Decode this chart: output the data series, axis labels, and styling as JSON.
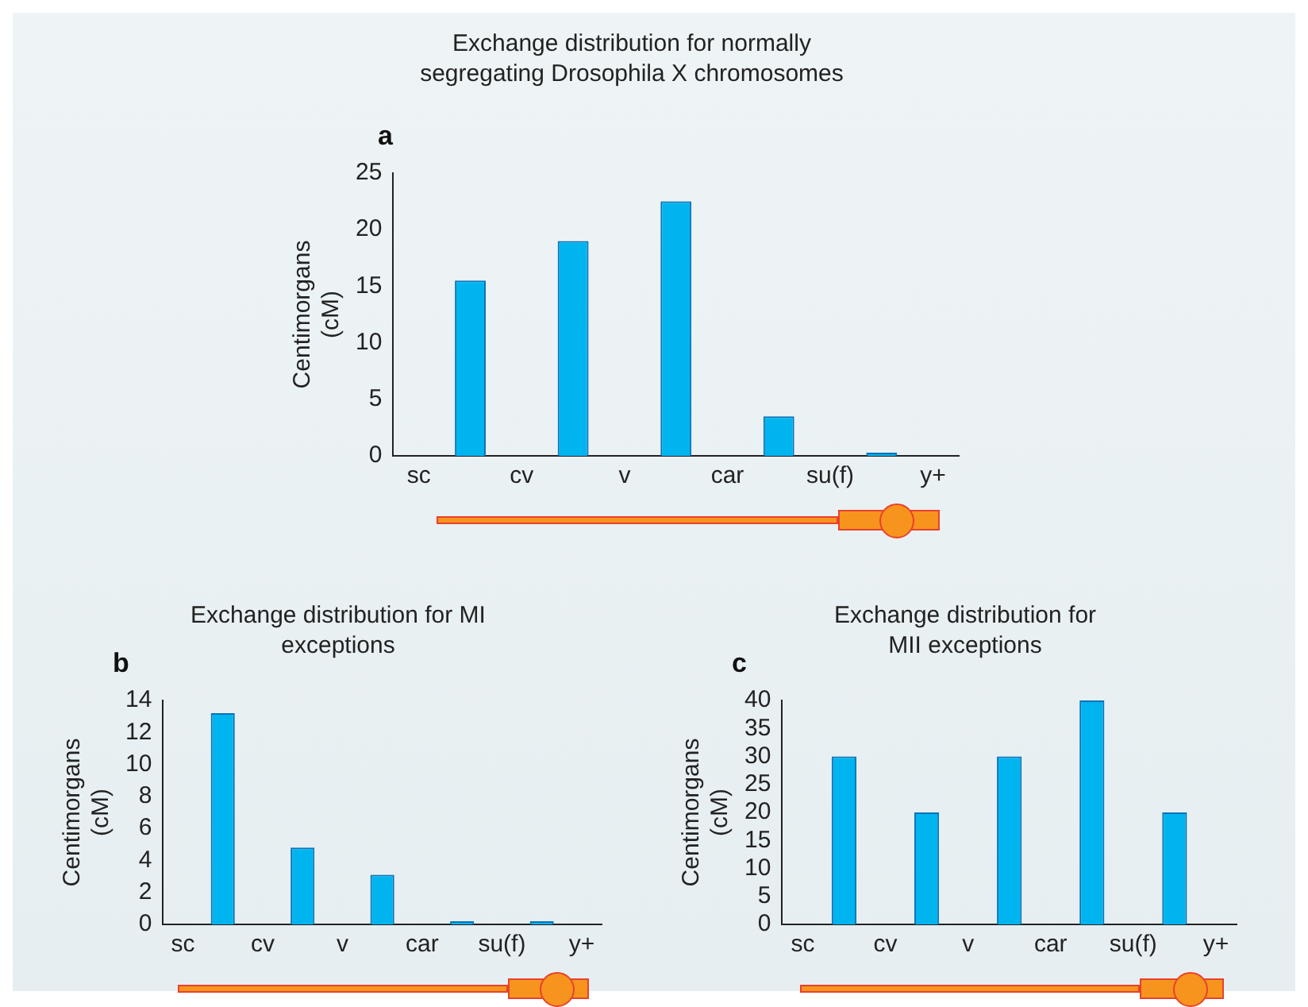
{
  "chart_data": [
    {
      "type": "bar",
      "title": "Exchange distribution for normally segregating Drosophila X chromosomes",
      "annotations": [
        "a"
      ],
      "ylabel": "Centimorgans (cM)",
      "categories": [
        "sc",
        null,
        "cv",
        null,
        "v",
        null,
        "car",
        null,
        "su(f)",
        null,
        "y+"
      ],
      "values": [
        null,
        15.5,
        null,
        19,
        null,
        22.5,
        null,
        3.5,
        null,
        0,
        null
      ],
      "color": "#00b4ef",
      "ylim": [
        0,
        25
      ],
      "yticks": [
        0,
        5,
        10,
        15,
        20,
        25
      ],
      "grid": false,
      "legend": false
    },
    {
      "type": "bar",
      "title": "Exchange distribution for MI exceptions",
      "annotations": [
        "b"
      ],
      "ylabel": "Centimorgans (cM)",
      "categories": [
        "sc",
        null,
        "cv",
        null,
        "v",
        null,
        "car",
        null,
        "su(f)",
        null,
        "y+"
      ],
      "values": [
        null,
        13.2,
        null,
        4.8,
        null,
        3.1,
        null,
        0,
        null,
        0,
        null
      ],
      "color": "#00b4ef",
      "ylim": [
        0,
        14
      ],
      "yticks": [
        0,
        2,
        4,
        6,
        8,
        10,
        12,
        14
      ],
      "grid": false,
      "legend": false
    },
    {
      "type": "bar",
      "title": "Exchange distribution for MII exceptions",
      "annotations": [
        "c"
      ],
      "ylabel": "Centimorgans (cM)",
      "categories": [
        "sc",
        null,
        "cv",
        null,
        "v",
        null,
        "car",
        null,
        "su(f)",
        null,
        "y+"
      ],
      "values": [
        null,
        30,
        null,
        20,
        null,
        30,
        null,
        40,
        null,
        20,
        null
      ],
      "color": "#00b4ef",
      "ylim": [
        0,
        40
      ],
      "yticks": [
        0,
        5,
        10,
        15,
        20,
        25,
        30,
        35,
        40
      ],
      "grid": false,
      "legend": false
    }
  ]
}
